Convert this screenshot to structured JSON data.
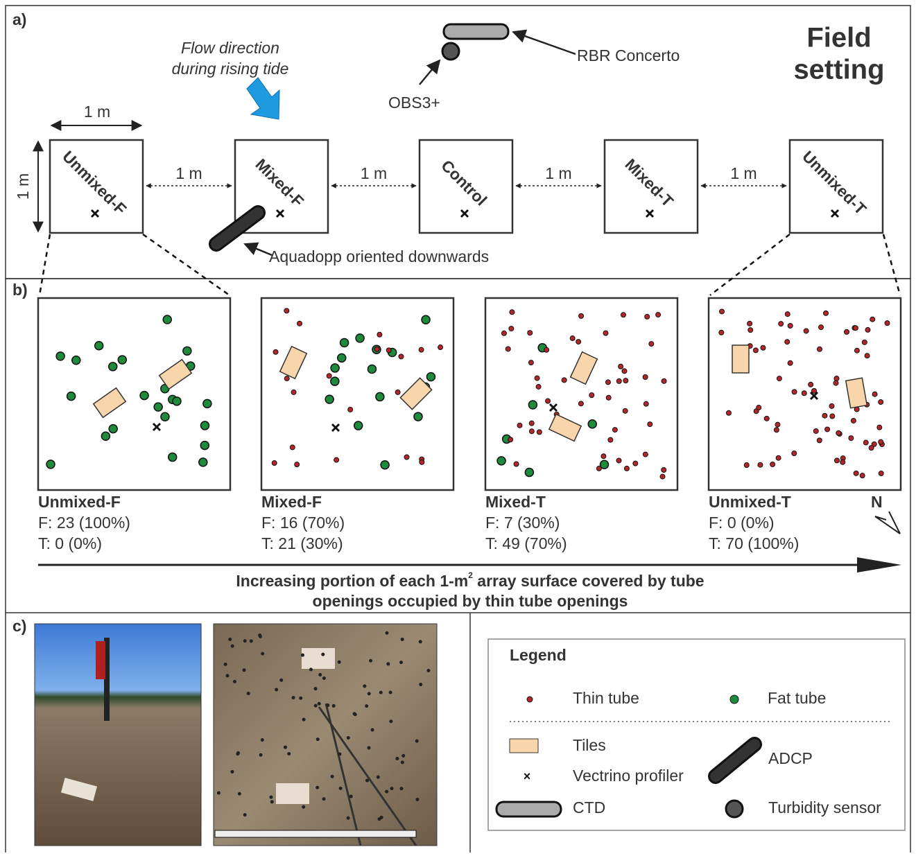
{
  "panel_a": {
    "letter": "a)",
    "title": [
      "Field",
      "setting"
    ],
    "flow": [
      "Flow direction",
      "during rising tide"
    ],
    "rbr": "RBR Concerto",
    "obs": "OBS3+",
    "aquadopp": "Aquadopp oriented downwards",
    "width_label": "1 m",
    "height_label": "1 m",
    "spacing_labels": [
      "1 m",
      "1 m",
      "1 m",
      "1 m"
    ],
    "plots": [
      "Unmixed-F",
      "Mixed-F",
      "Control",
      "Mixed-T",
      "Unmixed-T"
    ]
  },
  "panel_b": {
    "letter": "b)",
    "arrays": [
      {
        "name": "Unmixed-F",
        "fat": "F: 23 (100%)",
        "thin": "T: 0 (0%)"
      },
      {
        "name": "Mixed-F",
        "fat": "F: 16 (70%)",
        "thin": "T: 21 (30%)"
      },
      {
        "name": "Mixed-T",
        "fat": "F: 7 (30%)",
        "thin": "T: 49 (70%)"
      },
      {
        "name": "Unmixed-T",
        "fat": "F: 0 (0%)",
        "thin": "T: 70 (100%)"
      }
    ],
    "north": "N",
    "caption": [
      [
        "Increasing portion of each 1-m",
        "2",
        " array surface covered by tube"
      ],
      [
        "openings occupied by thin tube openings"
      ]
    ]
  },
  "panel_c": {
    "letter": "c)",
    "legend": {
      "title": "Legend",
      "thin_tube": "Thin tube",
      "fat_tube": "Fat tube",
      "tiles": "Tiles",
      "adcp": "ADCP",
      "vectrino": "Vectrino profiler",
      "ctd": "CTD",
      "turbidity": "Turbidity sensor"
    }
  }
}
